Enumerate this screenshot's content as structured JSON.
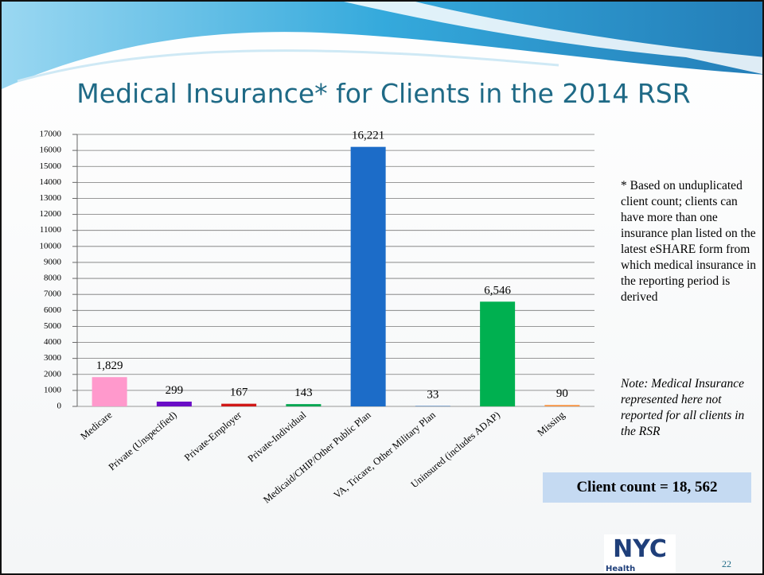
{
  "title": "Medical Insurance* for Clients in the 2014 RSR",
  "chart_data": {
    "type": "bar",
    "categories": [
      "Medicare",
      "Private (Unspecified)",
      "Private-Employer",
      "Private-Individual",
      "Medicaid/CHIP/Other Public Plan",
      "VA, Tricare, Other Military Plan",
      "Uninsured (includes ADAP)",
      "Missing"
    ],
    "values": [
      1829,
      299,
      167,
      143,
      16221,
      33,
      6546,
      90
    ],
    "value_labels": [
      "1,829",
      "299",
      "167",
      "143",
      "16,221",
      "33",
      "6,546",
      "90"
    ],
    "colors": [
      "#ff99cc",
      "#6a0dc6",
      "#d01818",
      "#00a651",
      "#1c6cc8",
      "#4f81bd",
      "#00b050",
      "#f79646"
    ],
    "ylim": [
      0,
      17000
    ],
    "yticks": [
      0,
      1000,
      2000,
      3000,
      4000,
      5000,
      6000,
      7000,
      8000,
      9000,
      10000,
      11000,
      12000,
      13000,
      14000,
      15000,
      16000,
      17000
    ],
    "grid": true
  },
  "footnote": "* Based on unduplicated client count; clients can have more than one insurance plan listed on the latest eSHARE form from which medical insurance in the reporting period is derived",
  "note": "Note: Medical Insurance represented here not reported for all clients in the RSR",
  "client_count": "Client count = 18, 562",
  "logo": {
    "mark": "NYC",
    "text": "Health"
  },
  "page_number": "22"
}
